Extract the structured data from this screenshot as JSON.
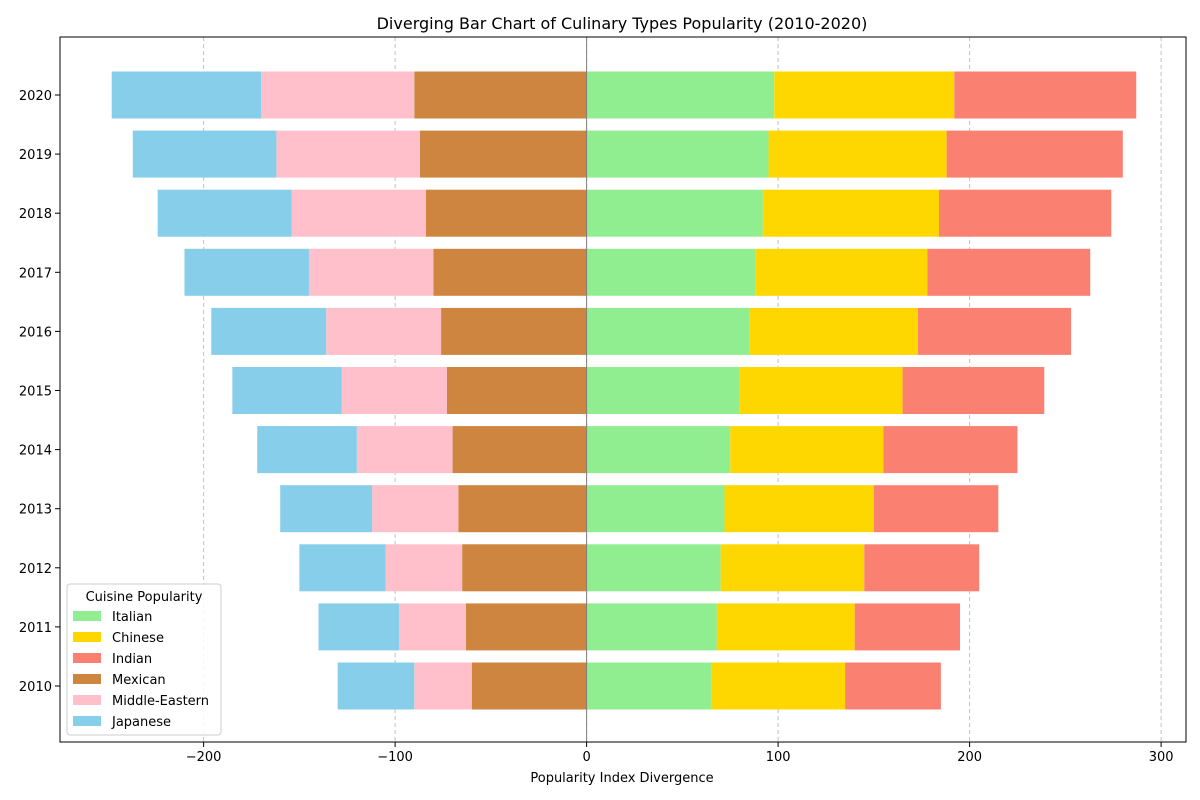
{
  "chart_data": {
    "type": "bar",
    "orientation": "horizontal-diverging-stacked",
    "title": "Diverging Bar Chart of Culinary Types Popularity (2010-2020)",
    "xlabel": "Popularity Index Divergence",
    "ylabel": "",
    "xlim": [
      -275,
      313
    ],
    "xticks": [
      -200,
      -100,
      0,
      100,
      200,
      300
    ],
    "xtick_labels": [
      "−200",
      "−100",
      "0",
      "100",
      "200",
      "300"
    ],
    "grid": "x-dashed",
    "categories": [
      "2010",
      "2011",
      "2012",
      "2013",
      "2014",
      "2015",
      "2016",
      "2017",
      "2018",
      "2019",
      "2020"
    ],
    "legend": {
      "title": "Cuisine Popularity",
      "placement": "lower-left"
    },
    "series": [
      {
        "name": "Italian",
        "side": "positive",
        "color": "#90ee90",
        "values": [
          65,
          68,
          70,
          72,
          75,
          80,
          85,
          88,
          92,
          95,
          98
        ]
      },
      {
        "name": "Chinese",
        "side": "positive",
        "color": "#ffd700",
        "values": [
          70,
          72,
          75,
          78,
          80,
          85,
          88,
          90,
          92,
          93,
          94
        ]
      },
      {
        "name": "Indian",
        "side": "positive",
        "color": "#fa8072",
        "values": [
          50,
          55,
          60,
          65,
          70,
          74,
          80,
          85,
          90,
          92,
          95
        ]
      },
      {
        "name": "Mexican",
        "side": "negative",
        "color": "#cd853f",
        "values": [
          60,
          63,
          65,
          67,
          70,
          73,
          76,
          80,
          84,
          87,
          90
        ]
      },
      {
        "name": "Middle-Eastern",
        "side": "negative",
        "color": "#ffc0cb",
        "values": [
          30,
          35,
          40,
          45,
          50,
          55,
          60,
          65,
          70,
          75,
          80
        ]
      },
      {
        "name": "Japanese",
        "side": "negative",
        "color": "#87ceeb",
        "values": [
          40,
          42,
          45,
          48,
          52,
          57,
          60,
          65,
          70,
          75,
          78
        ]
      }
    ]
  }
}
